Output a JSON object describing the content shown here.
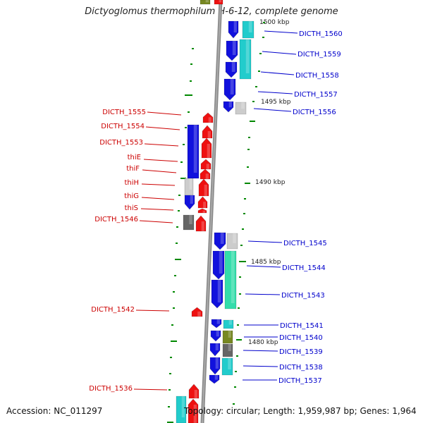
{
  "title": "Dictyoglomus thermophilum H-6-12, complete genome",
  "footer": {
    "accession": "Accession: NC_011297",
    "topology": "Topology: circular; Length: 1,959,987 bp; Genes: 1,964"
  },
  "colors": {
    "forward_gene": "#ee1111",
    "reverse_gene": "#1111dd",
    "left_label": "#cc0000",
    "right_label": "#0000cc",
    "backbone": "#888888",
    "tick": "#008800",
    "cyan": "#22cccc",
    "sea_green": "#33ddaa",
    "olive": "#778822",
    "light_gray": "#cccccc",
    "dark_gray": "#666666"
  },
  "kbp_labels": [
    "1500 kbp",
    "1495 kbp",
    "1490 kbp",
    "1485 kbp",
    "1480 kbp"
  ],
  "left_genes": [
    "DICTH_1555",
    "DICTH_1554",
    "DICTH_1553",
    "thiE",
    "thiF",
    "thiH",
    "thiG",
    "thiS",
    "DICTH_1546",
    "DICTH_1542",
    "DICTH_1536"
  ],
  "right_genes": [
    "DICTH_1560",
    "DICTH_1559",
    "DICTH_1558",
    "DICTH_1557",
    "DICTH_1556",
    "DICTH_1545",
    "DICTH_1544",
    "DICTH_1543",
    "DICTH_1541",
    "DICTH_1540",
    "DICTH_1539",
    "DICTH_1538",
    "DICTH_1537"
  ]
}
